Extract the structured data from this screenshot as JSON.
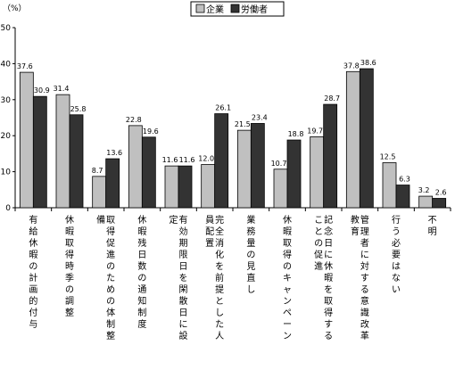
{
  "chart_data": {
    "type": "bar",
    "unit": "（%）",
    "ylim": [
      0,
      50
    ],
    "yticks": [
      0,
      10,
      20,
      30,
      40,
      50
    ],
    "grid": false,
    "legend_position": "top",
    "categories": [
      "有給休暇の計画的付与",
      "休暇取得時季の調整",
      "取得促進のための体制整備",
      "休暇残日数の通知制度",
      "有効期限日を閑散日に設定",
      "完全消化を前提とした人員配置",
      "業務量の見直し",
      "休暇取得のキャンペーン",
      "記念日に休暇を取得することの促進",
      "管理者に対する意識改革教育",
      "行う必要はない",
      "不明"
    ],
    "series": [
      {
        "name": "企業",
        "color": "#c0c0c0",
        "values": [
          37.6,
          31.4,
          8.7,
          22.8,
          11.6,
          12.0,
          21.5,
          10.7,
          19.7,
          37.8,
          12.5,
          3.2
        ],
        "labels": [
          "37.6",
          "31.4",
          "8.7",
          "22.8",
          "11.6",
          "12.0",
          "21.5",
          "10.7",
          "19.7",
          "37.8",
          "12.5",
          "3.2"
        ]
      },
      {
        "name": "労働者",
        "color": "#333333",
        "values": [
          30.9,
          25.8,
          13.6,
          19.6,
          11.6,
          26.1,
          23.4,
          18.8,
          28.7,
          38.6,
          6.3,
          2.6
        ],
        "labels": [
          "30.9",
          "25.8",
          "13.6",
          "19.6",
          "11.6",
          "26.1",
          "23.4",
          "18.8",
          "28.7",
          "38.6",
          "6.3",
          "2.6"
        ]
      }
    ]
  }
}
